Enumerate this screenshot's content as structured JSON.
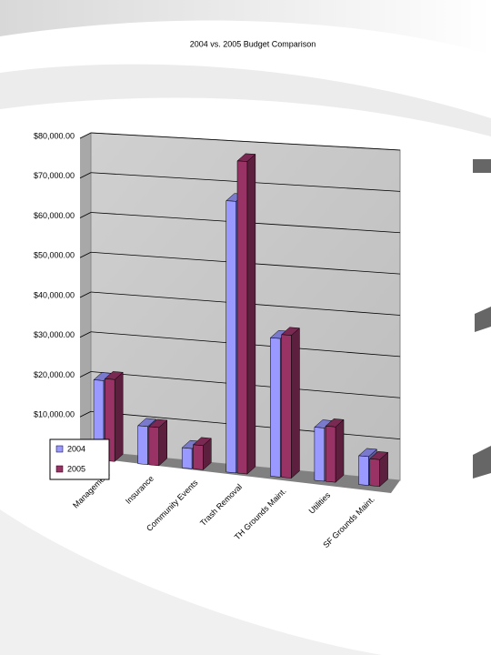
{
  "chart_data": {
    "type": "bar3d",
    "title": "2004 vs. 2005 Budget Comparison",
    "categories": [
      "Management",
      "Insurance",
      "Community Events",
      "Trash Removal",
      "TH Grounds Maint.",
      "Utilities",
      "SF Grounds Maint."
    ],
    "series": [
      {
        "name": "2004",
        "color": "#9999ff",
        "values": [
          20000,
          9500,
          5000,
          67000,
          34000,
          13000,
          7000
        ]
      },
      {
        "name": "2005",
        "color": "#993366",
        "values": [
          20500,
          9500,
          6000,
          77000,
          35000,
          13500,
          6500
        ]
      }
    ],
    "ylim": [
      0,
      80000
    ],
    "yticks": [
      {
        "value": 10000,
        "label": "$10,000.00"
      },
      {
        "value": 20000,
        "label": "$20,000.00"
      },
      {
        "value": 30000,
        "label": "$30,000.00"
      },
      {
        "value": 40000,
        "label": "$40,000.00"
      },
      {
        "value": 50000,
        "label": "$50,000.00"
      },
      {
        "value": 60000,
        "label": "$60,000.00"
      },
      {
        "value": 70000,
        "label": "$70,000.00"
      },
      {
        "value": 80000,
        "label": "$80,000.00"
      }
    ],
    "grid": true,
    "legend": "bottom-left"
  }
}
